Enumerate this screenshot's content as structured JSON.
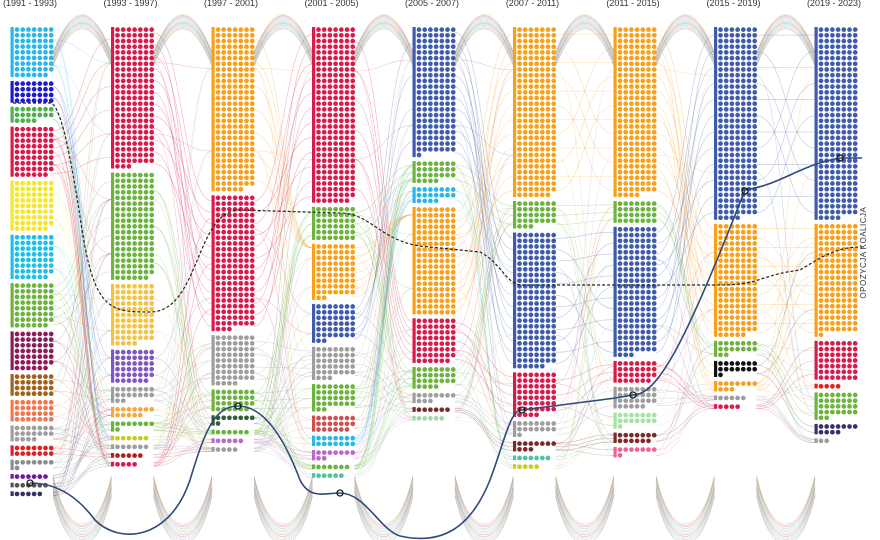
{
  "chart_data": {
    "type": "scatter",
    "subtype": "parliament seat flow (dot columns per term, flows between terms)",
    "terms": [
      {
        "label": "(1991 - 1993)",
        "groups": [
          {
            "color": "#29B6E8",
            "seats": 62
          },
          {
            "color": "#1A1AD6",
            "seats": 28
          },
          {
            "color": "#4CAF50",
            "seats": 18
          },
          {
            "color": "#D81B4A",
            "seats": 62
          },
          {
            "color": "#F5E62A",
            "seats": 62
          },
          {
            "color": "#1EC0EA",
            "seats": 55
          },
          {
            "color": "#6CB33F",
            "seats": 55
          },
          {
            "color": "#8B1C5C",
            "seats": 48
          },
          {
            "color": "#A0611A",
            "seats": 28
          },
          {
            "color": "#F07850",
            "seats": 28
          },
          {
            "color": "#9E9E9E",
            "seats": 18
          },
          {
            "color": "#E02020",
            "seats": 14
          },
          {
            "color": "#8C8C8C",
            "seats": 8
          },
          {
            "color": "#6A1B9A",
            "seats": 6
          },
          {
            "color": "#555555",
            "seats": 6
          },
          {
            "color": "#333366",
            "seats": 5
          }
        ]
      },
      {
        "label": "(1993 - 1997)",
        "groups": [
          {
            "color": "#D81B4A",
            "seats": 171
          },
          {
            "color": "#6CB33F",
            "seats": 132
          },
          {
            "color": "#F5C242",
            "seats": 74
          },
          {
            "color": "#7E57C2",
            "seats": 41
          },
          {
            "color": "#9E9E9E",
            "seats": 16
          },
          {
            "color": "#F7A83A",
            "seats": 12
          },
          {
            "color": "#6CB33F",
            "seats": 8
          },
          {
            "color": "#C9C92A",
            "seats": 6
          },
          {
            "color": "#9E9E9E",
            "seats": 6
          },
          {
            "color": "#B71C1C",
            "seats": 5
          },
          {
            "color": "#D81B4A",
            "seats": 4
          }
        ]
      },
      {
        "label": "(1997 - 2001)",
        "groups": [
          {
            "color": "#F7A01A",
            "seats": 201
          },
          {
            "color": "#D81B4A",
            "seats": 164
          },
          {
            "color": "#9E9E9E",
            "seats": 60
          },
          {
            "color": "#6CB33F",
            "seats": 27
          },
          {
            "color": "#2E5E3A",
            "seats": 8
          },
          {
            "color": "#6CB33F",
            "seats": 6
          },
          {
            "color": "#BA68C8",
            "seats": 5
          },
          {
            "color": "#9E9E9E",
            "seats": 4
          }
        ]
      },
      {
        "label": "(2001 - 2005)",
        "groups": [
          {
            "color": "#D81B4A",
            "seats": 216
          },
          {
            "color": "#6CB33F",
            "seats": 42
          },
          {
            "color": "#F7A01A",
            "seats": 65
          },
          {
            "color": "#3F5BA9",
            "seats": 44
          },
          {
            "color": "#9E9E9E",
            "seats": 38
          },
          {
            "color": "#6CB33F",
            "seats": 30
          },
          {
            "color": "#D05050",
            "seats": 20
          },
          {
            "color": "#29B6E8",
            "seats": 14
          },
          {
            "color": "#BA68C8",
            "seats": 9
          },
          {
            "color": "#6CB33F",
            "seats": 6
          },
          {
            "color": "#4FC3A1",
            "seats": 5
          }
        ]
      },
      {
        "label": "(2005 - 2007)",
        "groups": [
          {
            "color": "#3F5BA9",
            "seats": 155
          },
          {
            "color": "#6CB33F",
            "seats": 25
          },
          {
            "color": "#29B6E8",
            "seats": 18
          },
          {
            "color": "#F7A01A",
            "seats": 133
          },
          {
            "color": "#D81B4A",
            "seats": 55
          },
          {
            "color": "#6CB33F",
            "seats": 25
          },
          {
            "color": "#9E9E9E",
            "seats": 10
          },
          {
            "color": "#7A2A2A",
            "seats": 6
          },
          {
            "color": "#A5D6A7",
            "seats": 5
          }
        ]
      },
      {
        "label": "(2007 - 2011)",
        "groups": [
          {
            "color": "#F7A01A",
            "seats": 209
          },
          {
            "color": "#6CB33F",
            "seats": 31
          },
          {
            "color": "#3F5BA9",
            "seats": 166
          },
          {
            "color": "#D81B4A",
            "seats": 53
          },
          {
            "color": "#9E9E9E",
            "seats": 15
          },
          {
            "color": "#7A2A2A",
            "seats": 10
          },
          {
            "color": "#4FC3A1",
            "seats": 6
          },
          {
            "color": "#C9C92A",
            "seats": 4
          }
        ]
      },
      {
        "label": "(2011 - 2015)",
        "groups": [
          {
            "color": "#F7A01A",
            "seats": 207
          },
          {
            "color": "#6CB33F",
            "seats": 28
          },
          {
            "color": "#3F5BA9",
            "seats": 157
          },
          {
            "color": "#D81B4A",
            "seats": 27
          },
          {
            "color": "#9E9E9E",
            "seats": 26
          },
          {
            "color": "#A5E3A0",
            "seats": 15
          },
          {
            "color": "#7A2A2A",
            "seats": 13
          },
          {
            "color": "#F06292",
            "seats": 8
          }
        ]
      },
      {
        "label": "(2015 - 2019)",
        "groups": [
          {
            "color": "#3F5BA9",
            "seats": 235
          },
          {
            "color": "#F7A01A",
            "seats": 138
          },
          {
            "color": "#6CB33F",
            "seats": 16
          },
          {
            "color": "#111111",
            "seats": 15
          },
          {
            "color": "#F7A01A",
            "seats": 10
          },
          {
            "color": "#9E9E9E",
            "seats": 5
          },
          {
            "color": "#D81B4A",
            "seats": 4
          }
        ]
      },
      {
        "label": "(2019 - 2023)",
        "groups": [
          {
            "color": "#3F5BA9",
            "seats": 235
          },
          {
            "color": "#F7A01A",
            "seats": 134
          },
          {
            "color": "#D81B4A",
            "seats": 49
          },
          {
            "color": "#E02020",
            "seats": 4
          },
          {
            "color": "#6CB33F",
            "seats": 30
          },
          {
            "color": "#333366",
            "seats": 11
          },
          {
            "color": "#9E9E9E",
            "seats": 2
          }
        ]
      }
    ],
    "side_labels": [
      "OPOZYCJA",
      "KOALICJA"
    ],
    "colors": {
      "flow_opacity": "0.30",
      "divider": "#222222",
      "highlight": "#2D4A7A"
    }
  }
}
